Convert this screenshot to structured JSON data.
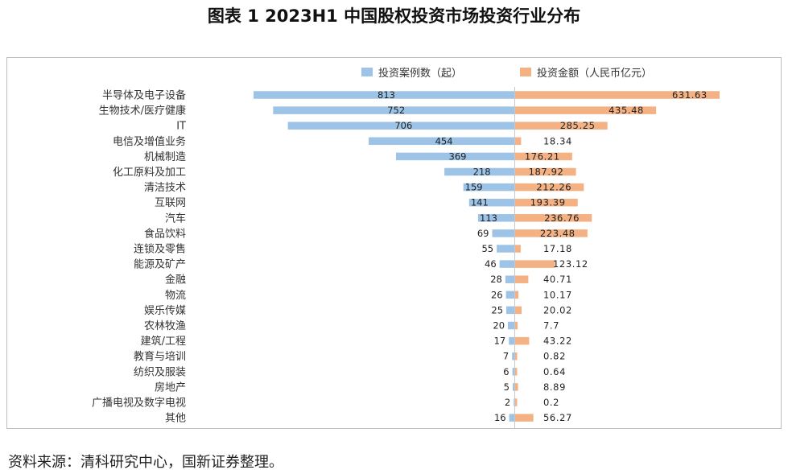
{
  "title": "图表 1 2023H1 中国股权投资市场投资行业分布",
  "source": "资料来源：清科研究中心，国新证券整理。",
  "colors": {
    "count": "#9dc3e6",
    "amount": "#f4b183",
    "axis": "#c8c8c8"
  },
  "chart_data": {
    "type": "bar",
    "orientation": "horizontal-butterfly",
    "categories": [
      "半导体及电子设备",
      "生物技术/医疗健康",
      "IT",
      "电信及增值业务",
      "机械制造",
      "化工原料及加工",
      "清洁技术",
      "互联网",
      "汽车",
      "食品饮料",
      "连锁及零售",
      "能源及矿产",
      "金融",
      "物流",
      "娱乐传媒",
      "农林牧渔",
      "建筑/工程",
      "教育与培训",
      "纺织及服装",
      "房地产",
      "广播电视及数字电视",
      "其他"
    ],
    "series": [
      {
        "name": "投资案例数（起）",
        "side": "left",
        "values": [
          813,
          752,
          706,
          454,
          369,
          218,
          159,
          141,
          113,
          69,
          55,
          46,
          28,
          26,
          25,
          20,
          17,
          7,
          6,
          5,
          2,
          16
        ],
        "labels": [
          "813",
          "752",
          "706",
          "454",
          "369",
          "218",
          "159",
          "141",
          "113",
          "69",
          "55",
          "46",
          "28",
          "26",
          "25",
          "20",
          "17",
          "7",
          "6",
          "5",
          "2",
          "16"
        ]
      },
      {
        "name": "投资金额（人民币亿元）",
        "side": "right",
        "values": [
          631.63,
          435.48,
          285.25,
          18.34,
          176.21,
          187.92,
          212.26,
          193.39,
          236.76,
          223.48,
          17.18,
          123.12,
          40.71,
          10.17,
          20.02,
          7.7,
          43.22,
          0.82,
          0.64,
          8.89,
          0.2,
          56.27
        ],
        "labels": [
          "631.63",
          "435.48",
          "285.25",
          "18.34",
          "176.21",
          "187.92",
          "212.26",
          "193.39",
          "236.76",
          "223.48",
          "17.18",
          "123.12",
          "40.71",
          "10.17",
          "20.02",
          "7.7",
          "43.22",
          "0.82",
          "0.64",
          "8.89",
          "0.2",
          "56.27"
        ]
      }
    ],
    "legend_position": "top"
  }
}
